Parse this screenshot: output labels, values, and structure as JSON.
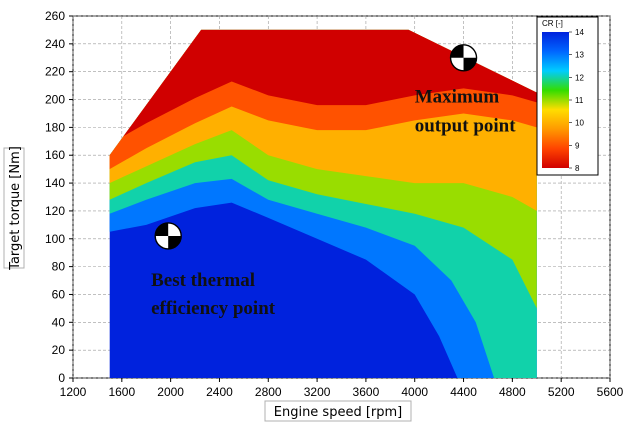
{
  "chart_data": {
    "type": "heatmap",
    "title": "",
    "xlabel": "Engine speed [rpm]",
    "ylabel": "Target torque [Nm]",
    "xlim": [
      1200,
      5600
    ],
    "ylim": [
      0,
      260
    ],
    "x_ticks": [
      1200,
      1600,
      2000,
      2400,
      2800,
      3200,
      3600,
      4000,
      4400,
      4800,
      5200,
      5600
    ],
    "y_ticks": [
      0,
      20,
      40,
      60,
      80,
      100,
      120,
      140,
      160,
      180,
      200,
      220,
      240,
      260
    ],
    "grid": true,
    "legend": {
      "title": "CR [-]",
      "placement": "top-right",
      "min": 8,
      "max": 14,
      "ticks": [
        8,
        9,
        10,
        11,
        12,
        13,
        14
      ]
    },
    "colormap": [
      "#d00000",
      "#ff4400",
      "#ff9900",
      "#ffdd00",
      "#33dd00",
      "#00ccff",
      "#0066ff",
      "#0022dd"
    ],
    "boundary": [
      [
        1500,
        0
      ],
      [
        1500,
        160
      ],
      [
        2250,
        250
      ],
      [
        3950,
        250
      ],
      [
        5000,
        205
      ],
      [
        5000,
        0
      ]
    ],
    "contours": [
      {
        "cr": 13,
        "points": [
          [
            1500,
            105
          ],
          [
            1800,
            110
          ],
          [
            2200,
            122
          ],
          [
            2500,
            126
          ],
          [
            2800,
            115
          ],
          [
            3200,
            100
          ],
          [
            3600,
            85
          ],
          [
            4000,
            60
          ],
          [
            4200,
            30
          ],
          [
            4350,
            0
          ]
        ]
      },
      {
        "cr": 12,
        "points": [
          [
            1500,
            118
          ],
          [
            1800,
            128
          ],
          [
            2200,
            140
          ],
          [
            2500,
            143
          ],
          [
            2800,
            128
          ],
          [
            3200,
            118
          ],
          [
            3600,
            108
          ],
          [
            4000,
            95
          ],
          [
            4300,
            70
          ],
          [
            4500,
            40
          ],
          [
            4650,
            0
          ]
        ]
      },
      {
        "cr": 11,
        "points": [
          [
            1500,
            128
          ],
          [
            1800,
            140
          ],
          [
            2200,
            155
          ],
          [
            2500,
            160
          ],
          [
            2800,
            142
          ],
          [
            3200,
            132
          ],
          [
            3600,
            125
          ],
          [
            4000,
            118
          ],
          [
            4400,
            108
          ],
          [
            4800,
            85
          ],
          [
            5000,
            50
          ]
        ]
      },
      {
        "cr": 10,
        "points": [
          [
            1500,
            140
          ],
          [
            1800,
            152
          ],
          [
            2200,
            168
          ],
          [
            2500,
            178
          ],
          [
            2800,
            160
          ],
          [
            3200,
            150
          ],
          [
            3600,
            145
          ],
          [
            4000,
            140
          ],
          [
            4400,
            140
          ],
          [
            4800,
            130
          ],
          [
            5000,
            120
          ]
        ]
      },
      {
        "cr": 9,
        "points": [
          [
            1500,
            150
          ],
          [
            1800,
            165
          ],
          [
            2200,
            183
          ],
          [
            2500,
            195
          ],
          [
            2800,
            185
          ],
          [
            3200,
            178
          ],
          [
            3600,
            178
          ],
          [
            4000,
            185
          ],
          [
            4400,
            190
          ],
          [
            4800,
            185
          ],
          [
            5000,
            180
          ]
        ]
      }
    ],
    "annotations": [
      {
        "text": "Maximum",
        "x": 4000,
        "y": 198
      },
      {
        "text": "output point",
        "x": 4000,
        "y": 177
      },
      {
        "text": "Best thermal",
        "x": 1840,
        "y": 66
      },
      {
        "text": "efficiency point",
        "x": 1840,
        "y": 46
      }
    ],
    "markers": [
      {
        "name": "maximum-output-point",
        "x": 4400,
        "y": 230
      },
      {
        "name": "best-thermal-efficiency-point",
        "x": 1980,
        "y": 102
      }
    ]
  }
}
